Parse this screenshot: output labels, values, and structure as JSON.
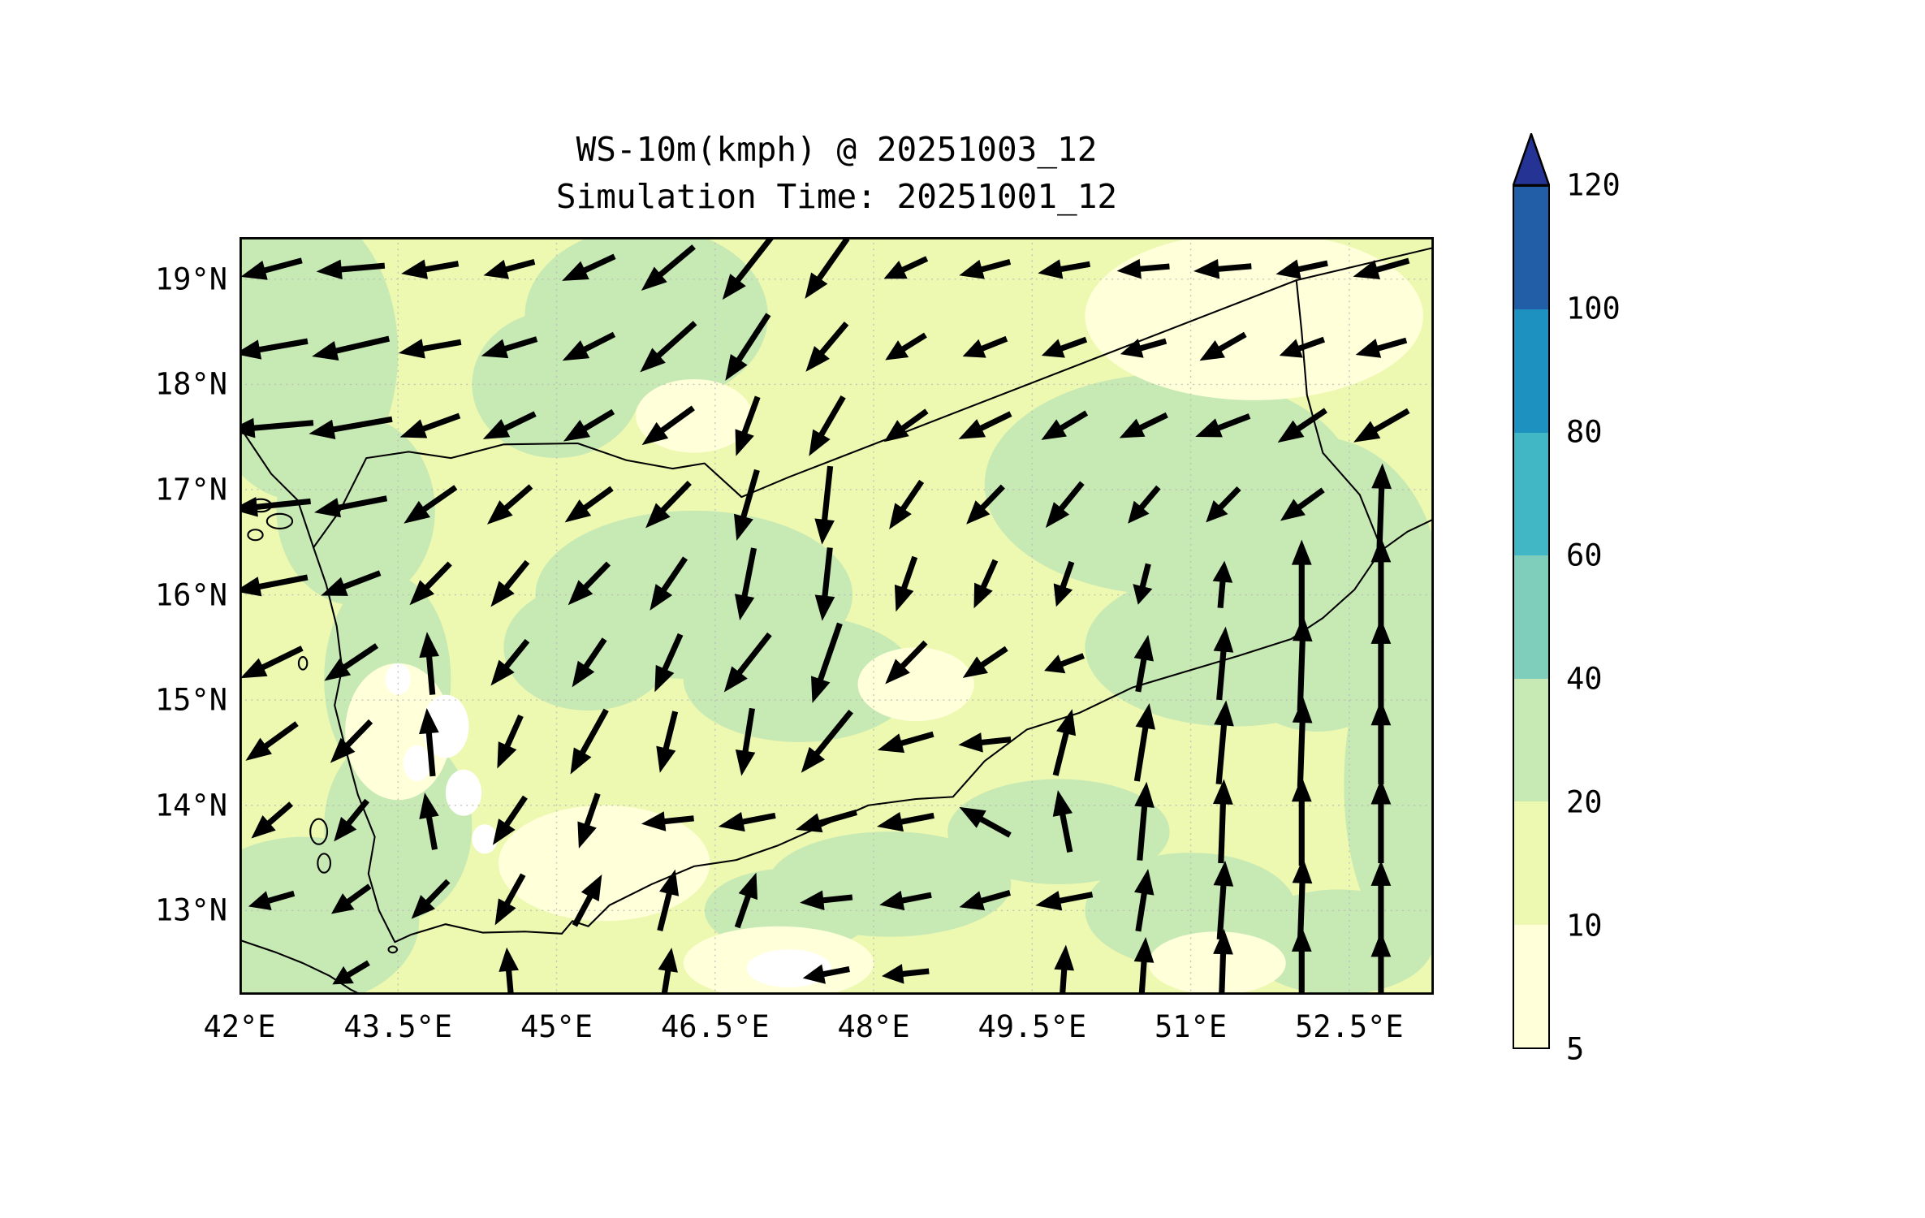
{
  "figure": {
    "title_line1": "WS-10m(kmph) @ 20251003_12",
    "title_line2": "Simulation Time: 20251001_12"
  },
  "axes": {
    "lon_min": 42.0,
    "lon_max": 53.3,
    "lat_min": 12.2,
    "lat_max": 19.4,
    "x_ticks": [
      {
        "v": 42.0,
        "label": "42°E"
      },
      {
        "v": 43.5,
        "label": "43.5°E"
      },
      {
        "v": 45.0,
        "label": "45°E"
      },
      {
        "v": 46.5,
        "label": "46.5°E"
      },
      {
        "v": 48.0,
        "label": "48°E"
      },
      {
        "v": 49.5,
        "label": "49.5°E"
      },
      {
        "v": 51.0,
        "label": "51°E"
      },
      {
        "v": 52.5,
        "label": "52.5°E"
      }
    ],
    "y_ticks": [
      {
        "v": 13.0,
        "label": "13°N"
      },
      {
        "v": 14.0,
        "label": "14°N"
      },
      {
        "v": 15.0,
        "label": "15°N"
      },
      {
        "v": 16.0,
        "label": "16°N"
      },
      {
        "v": 17.0,
        "label": "17°N"
      },
      {
        "v": 18.0,
        "label": "18°N"
      },
      {
        "v": 19.0,
        "label": "19°N"
      }
    ],
    "grid_color": "#b8b8b8"
  },
  "colorbar": {
    "tick_labels_bottom_to_top": [
      "5",
      "10",
      "20",
      "40",
      "60",
      "80",
      "100",
      "120"
    ],
    "segment_colors_bottom_to_top": [
      "#ffffd9",
      "#edf8b1",
      "#c7e9b4",
      "#7fcdbb",
      "#41b6c4",
      "#1d91c0",
      "#225ea8"
    ],
    "extend_over_color": "#253494",
    "outline_color": "#000000"
  },
  "map_colors": {
    "base_fill": "#edf8b1",
    "green_fill": "#c7e9b4",
    "pale_fill": "#ffffd9",
    "under_fill": "#ffffff",
    "coastline": "#000000"
  },
  "chart_data": {
    "type": "map-contourf-quiver",
    "variable": "WS-10m",
    "units": "kmph",
    "valid_time": "20251003_12",
    "simulation_time": "20251001_12",
    "region": "Yemen / southern Arabian Peninsula",
    "extent": {
      "lon_min": 42.0,
      "lon_max": 53.3,
      "lat_min": 12.2,
      "lat_max": 19.4
    },
    "contour_levels": [
      5,
      10,
      20,
      40,
      60,
      80,
      100,
      120
    ],
    "colormap_colors": [
      "#ffffd9",
      "#edf8b1",
      "#c7e9b4",
      "#7fcdbb",
      "#41b6c4",
      "#1d91c0",
      "#225ea8"
    ],
    "over_color": "#253494",
    "under_color": "#ffffff",
    "field_note": "wind speed mostly 5-40 kmph over domain; northeasterly flow (arrows toward SW/W) in north and west, southerly flow (arrows toward N) in east and southeast",
    "arrow_format": [
      "lon_deg_E",
      "lat_deg_N",
      "direction_deg_math_0E_90N",
      "length_units"
    ],
    "arrows": [
      [
        42.3,
        19.1,
        195,
        60
      ],
      [
        43.05,
        19.1,
        185,
        65
      ],
      [
        43.8,
        19.1,
        190,
        55
      ],
      [
        44.55,
        19.1,
        195,
        50
      ],
      [
        45.3,
        19.1,
        205,
        55
      ],
      [
        46.05,
        19.1,
        220,
        65
      ],
      [
        46.8,
        19.1,
        232,
        75
      ],
      [
        47.55,
        19.1,
        235,
        70
      ],
      [
        48.3,
        19.1,
        205,
        45
      ],
      [
        49.05,
        19.1,
        195,
        50
      ],
      [
        49.8,
        19.1,
        190,
        50
      ],
      [
        50.55,
        19.1,
        185,
        50
      ],
      [
        51.3,
        19.1,
        185,
        55
      ],
      [
        52.05,
        19.1,
        192,
        50
      ],
      [
        52.8,
        19.1,
        196,
        55
      ],
      [
        42.3,
        18.35,
        190,
        70
      ],
      [
        43.05,
        18.35,
        193,
        75
      ],
      [
        43.8,
        18.35,
        190,
        60
      ],
      [
        44.55,
        18.35,
        197,
        55
      ],
      [
        45.3,
        18.35,
        207,
        55
      ],
      [
        46.05,
        18.35,
        222,
        70
      ],
      [
        46.8,
        18.35,
        237,
        75
      ],
      [
        47.55,
        18.35,
        230,
        60
      ],
      [
        48.3,
        18.35,
        212,
        45
      ],
      [
        49.05,
        18.35,
        202,
        45
      ],
      [
        49.8,
        18.35,
        200,
        45
      ],
      [
        50.55,
        18.35,
        196,
        45
      ],
      [
        51.3,
        18.35,
        210,
        50
      ],
      [
        52.05,
        18.35,
        200,
        45
      ],
      [
        52.8,
        18.35,
        196,
        50
      ],
      [
        42.3,
        17.6,
        185,
        80
      ],
      [
        43.05,
        17.6,
        190,
        80
      ],
      [
        43.8,
        17.6,
        200,
        60
      ],
      [
        44.55,
        17.6,
        206,
        55
      ],
      [
        45.3,
        17.6,
        211,
        55
      ],
      [
        46.05,
        17.6,
        216,
        60
      ],
      [
        46.8,
        17.6,
        250,
        60
      ],
      [
        47.55,
        17.6,
        240,
        65
      ],
      [
        48.3,
        17.6,
        216,
        50
      ],
      [
        49.05,
        17.6,
        206,
        55
      ],
      [
        49.8,
        17.6,
        211,
        50
      ],
      [
        50.55,
        17.6,
        206,
        50
      ],
      [
        51.3,
        17.6,
        201,
        55
      ],
      [
        52.05,
        17.6,
        214,
        55
      ],
      [
        52.8,
        17.6,
        210,
        60
      ],
      [
        42.3,
        16.85,
        186,
        75
      ],
      [
        43.05,
        16.85,
        191,
        70
      ],
      [
        43.8,
        16.85,
        215,
        60
      ],
      [
        44.55,
        16.85,
        221,
        55
      ],
      [
        45.3,
        16.85,
        216,
        55
      ],
      [
        46.05,
        16.85,
        226,
        60
      ],
      [
        46.8,
        16.85,
        254,
        70
      ],
      [
        47.55,
        16.85,
        264,
        75
      ],
      [
        48.3,
        16.85,
        236,
        55
      ],
      [
        49.05,
        16.85,
        226,
        50
      ],
      [
        49.8,
        16.85,
        231,
        55
      ],
      [
        50.55,
        16.85,
        230,
        45
      ],
      [
        51.3,
        16.85,
        226,
        45
      ],
      [
        52.05,
        16.85,
        216,
        50
      ],
      [
        52.8,
        16.85,
        88,
        80
      ],
      [
        42.3,
        16.1,
        191,
        70
      ],
      [
        43.05,
        16.1,
        201,
        60
      ],
      [
        43.8,
        16.1,
        226,
        55
      ],
      [
        44.55,
        16.1,
        231,
        55
      ],
      [
        45.3,
        16.1,
        226,
        55
      ],
      [
        46.05,
        16.1,
        236,
        60
      ],
      [
        46.8,
        16.1,
        259,
        70
      ],
      [
        47.55,
        16.1,
        264,
        70
      ],
      [
        48.3,
        16.1,
        251,
        55
      ],
      [
        49.05,
        16.1,
        246,
        50
      ],
      [
        49.8,
        16.1,
        251,
        45
      ],
      [
        50.55,
        16.1,
        256,
        40
      ],
      [
        51.3,
        16.1,
        85,
        45
      ],
      [
        52.05,
        16.1,
        90,
        85
      ],
      [
        52.8,
        16.1,
        90,
        90
      ],
      [
        42.3,
        15.35,
        206,
        65
      ],
      [
        43.05,
        15.35,
        214,
        60
      ],
      [
        43.8,
        15.35,
        95,
        60
      ],
      [
        44.55,
        15.35,
        231,
        55
      ],
      [
        45.3,
        15.35,
        236,
        55
      ],
      [
        46.05,
        15.35,
        246,
        60
      ],
      [
        46.8,
        15.35,
        232,
        70
      ],
      [
        47.55,
        15.35,
        251,
        80
      ],
      [
        48.3,
        15.35,
        226,
        55
      ],
      [
        49.05,
        15.35,
        214,
        50
      ],
      [
        49.8,
        15.35,
        201,
        40
      ],
      [
        50.55,
        15.35,
        80,
        55
      ],
      [
        51.3,
        15.35,
        85,
        70
      ],
      [
        52.05,
        15.35,
        88,
        90
      ],
      [
        52.8,
        15.35,
        90,
        85
      ],
      [
        42.3,
        14.6,
        216,
        60
      ],
      [
        43.05,
        14.6,
        226,
        55
      ],
      [
        43.8,
        14.6,
        95,
        65
      ],
      [
        44.55,
        14.6,
        246,
        55
      ],
      [
        45.3,
        14.6,
        241,
        70
      ],
      [
        46.05,
        14.6,
        256,
        60
      ],
      [
        46.8,
        14.6,
        261,
        65
      ],
      [
        47.55,
        14.6,
        231,
        75
      ],
      [
        48.3,
        14.6,
        196,
        55
      ],
      [
        49.05,
        14.6,
        186,
        50
      ],
      [
        49.8,
        14.6,
        76,
        65
      ],
      [
        50.55,
        14.6,
        81,
        75
      ],
      [
        51.3,
        14.6,
        85,
        80
      ],
      [
        52.05,
        14.6,
        88,
        85
      ],
      [
        52.8,
        14.6,
        90,
        80
      ],
      [
        42.3,
        13.85,
        221,
        50
      ],
      [
        43.05,
        13.85,
        231,
        50
      ],
      [
        43.8,
        13.85,
        100,
        55
      ],
      [
        44.55,
        13.85,
        236,
        55
      ],
      [
        45.3,
        13.85,
        251,
        55
      ],
      [
        46.05,
        13.85,
        186,
        50
      ],
      [
        46.8,
        13.85,
        191,
        55
      ],
      [
        47.55,
        13.85,
        196,
        60
      ],
      [
        48.3,
        13.85,
        191,
        55
      ],
      [
        49.05,
        13.85,
        151,
        55
      ],
      [
        49.8,
        13.85,
        101,
        60
      ],
      [
        50.55,
        13.85,
        85,
        75
      ],
      [
        51.3,
        13.85,
        88,
        80
      ],
      [
        52.05,
        13.85,
        90,
        85
      ],
      [
        52.8,
        13.85,
        90,
        80
      ],
      [
        42.3,
        13.1,
        196,
        45
      ],
      [
        43.05,
        13.1,
        216,
        45
      ],
      [
        43.8,
        13.1,
        226,
        50
      ],
      [
        44.55,
        13.1,
        241,
        55
      ],
      [
        45.3,
        13.1,
        62,
        55
      ],
      [
        46.05,
        13.1,
        76,
        60
      ],
      [
        46.8,
        13.1,
        71,
        55
      ],
      [
        47.55,
        13.1,
        186,
        50
      ],
      [
        48.3,
        13.1,
        191,
        50
      ],
      [
        49.05,
        13.1,
        196,
        50
      ],
      [
        49.8,
        13.1,
        191,
        55
      ],
      [
        50.55,
        13.1,
        81,
        60
      ],
      [
        51.3,
        13.1,
        86,
        75
      ],
      [
        52.05,
        13.1,
        88,
        80
      ],
      [
        52.8,
        13.1,
        90,
        75
      ],
      [
        43.05,
        12.4,
        211,
        40
      ],
      [
        44.55,
        12.4,
        95,
        50
      ],
      [
        46.05,
        12.4,
        81,
        50
      ],
      [
        47.55,
        12.4,
        191,
        45
      ],
      [
        48.3,
        12.4,
        186,
        45
      ],
      [
        49.8,
        12.4,
        86,
        55
      ],
      [
        50.55,
        12.4,
        86,
        70
      ],
      [
        51.3,
        12.4,
        88,
        85
      ],
      [
        52.05,
        12.4,
        90,
        90
      ],
      [
        52.8,
        12.4,
        90,
        80
      ]
    ]
  }
}
